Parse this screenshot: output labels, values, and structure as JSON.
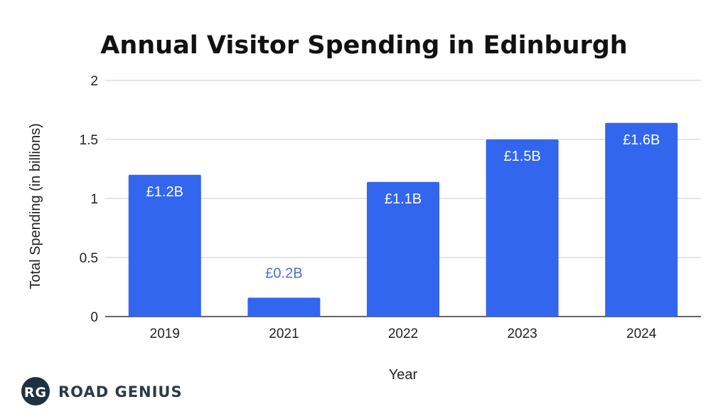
{
  "chart_data": {
    "type": "bar",
    "title": "Annual Visitor Spending in Edinburgh",
    "xlabel": "Year",
    "ylabel": "Total Spending (in billions)",
    "categories": [
      "2019",
      "2021",
      "2022",
      "2023",
      "2024"
    ],
    "values": [
      1.2,
      0.16,
      1.14,
      1.5,
      1.64
    ],
    "data_labels": [
      "£1.2B",
      "£0.2B",
      "£1.1B",
      "£1.5B",
      "£1.6B"
    ],
    "ylim": [
      0,
      2
    ],
    "yticks": [
      "0",
      "0.5",
      "1",
      "1.5",
      "2"
    ],
    "ytick_values": [
      0,
      0.5,
      1,
      1.5,
      2
    ],
    "grid": true,
    "legend": "none",
    "colors": {
      "bar": "#3366ee",
      "label_inside": "#ffffff",
      "label_outside": "#4a6fd8",
      "grid": "#cccccc",
      "axis": "#333333",
      "text": "#222222"
    }
  },
  "brand": {
    "badge": "RG",
    "name": "ROAD GENIUS",
    "colors": {
      "badge_bg": "#1f3140",
      "text": "#2a3a48"
    }
  }
}
